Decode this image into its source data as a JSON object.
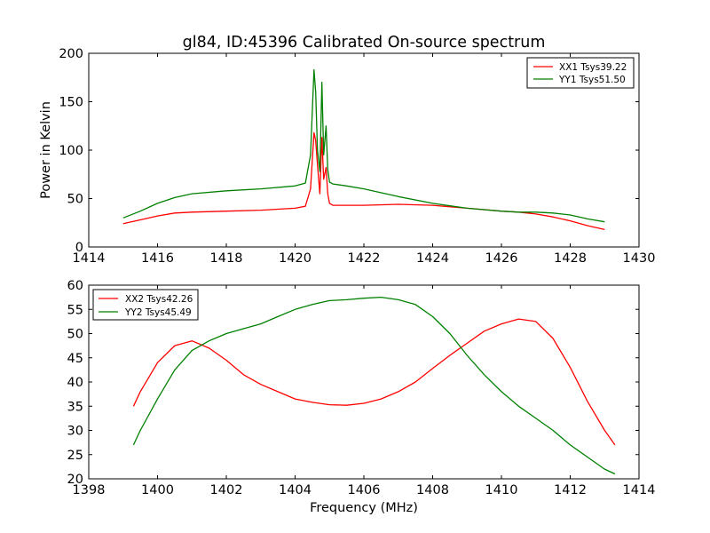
{
  "chart_data": [
    {
      "type": "line",
      "title": "gl84, ID:45396 Calibrated On-source spectrum",
      "xlabel": "",
      "ylabel": "Power in Kelvin",
      "xlim": [
        1414,
        1430
      ],
      "ylim": [
        0,
        200
      ],
      "xticks": [
        "1414",
        "1416",
        "1418",
        "1420",
        "1422",
        "1424",
        "1426",
        "1428",
        "1430"
      ],
      "yticks": [
        "0",
        "50",
        "100",
        "150",
        "200"
      ],
      "grid": false,
      "legend_position": "top-right",
      "series": [
        {
          "name": "XX1 Tsys39.22",
          "color": "#ff0000",
          "x": [
            1415.0,
            1415.5,
            1416.0,
            1416.5,
            1417.0,
            1418.0,
            1419.0,
            1420.0,
            1420.3,
            1420.45,
            1420.55,
            1420.6,
            1420.65,
            1420.72,
            1420.78,
            1420.83,
            1420.9,
            1420.95,
            1421.0,
            1421.1,
            1421.5,
            1422.0,
            1423.0,
            1424.0,
            1425.0,
            1426.0,
            1426.5,
            1427.0,
            1427.5,
            1428.0,
            1428.5,
            1429.0
          ],
          "y": [
            24,
            28,
            32,
            35,
            36,
            37,
            38,
            40,
            42,
            60,
            118,
            110,
            85,
            55,
            113,
            70,
            82,
            55,
            45,
            43,
            43,
            43,
            44,
            43,
            40,
            37,
            36,
            34,
            31,
            27,
            22,
            18
          ]
        },
        {
          "name": "YY1 Tsys51.50",
          "color": "#008000",
          "x": [
            1415.0,
            1415.5,
            1416.0,
            1416.5,
            1417.0,
            1418.0,
            1419.0,
            1420.0,
            1420.3,
            1420.45,
            1420.55,
            1420.6,
            1420.65,
            1420.72,
            1420.78,
            1420.83,
            1420.9,
            1420.95,
            1421.0,
            1421.1,
            1421.5,
            1422.0,
            1423.0,
            1424.0,
            1425.0,
            1426.0,
            1426.5,
            1427.0,
            1427.5,
            1428.0,
            1428.5,
            1429.0
          ],
          "y": [
            30,
            37,
            45,
            51,
            55,
            58,
            60,
            63,
            66,
            95,
            183,
            160,
            100,
            78,
            170,
            95,
            125,
            80,
            67,
            65,
            63,
            60,
            52,
            45,
            40,
            37,
            36,
            36,
            35,
            33,
            29,
            26
          ]
        }
      ]
    },
    {
      "type": "line",
      "title": "",
      "xlabel": "Frequency (MHz)",
      "ylabel": "",
      "xlim": [
        1398,
        1414
      ],
      "ylim": [
        20,
        60
      ],
      "xticks": [
        "1398",
        "1400",
        "1402",
        "1404",
        "1406",
        "1408",
        "1410",
        "1412",
        "1414"
      ],
      "yticks": [
        "20",
        "25",
        "30",
        "35",
        "40",
        "45",
        "50",
        "55",
        "60"
      ],
      "grid": false,
      "legend_position": "top-left",
      "series": [
        {
          "name": "XX2 Tsys42.26",
          "color": "#ff0000",
          "x": [
            1399.3,
            1399.5,
            1400.0,
            1400.5,
            1401.0,
            1401.5,
            1402.0,
            1402.5,
            1403.0,
            1403.5,
            1404.0,
            1404.5,
            1405.0,
            1405.5,
            1406.0,
            1406.5,
            1407.0,
            1407.5,
            1408.0,
            1408.5,
            1409.0,
            1409.5,
            1410.0,
            1410.5,
            1411.0,
            1411.5,
            1412.0,
            1412.5,
            1413.0,
            1413.3
          ],
          "y": [
            35,
            38,
            44,
            47.5,
            48.5,
            47,
            44.5,
            41.5,
            39.5,
            38,
            36.5,
            35.8,
            35.3,
            35.2,
            35.6,
            36.5,
            38,
            40,
            42.8,
            45.5,
            48,
            50.5,
            52,
            53,
            52.5,
            49,
            43,
            36,
            30,
            27
          ]
        },
        {
          "name": "YY2 Tsys45.49",
          "color": "#008000",
          "x": [
            1399.3,
            1399.5,
            1400.0,
            1400.5,
            1401.0,
            1401.5,
            1402.0,
            1402.5,
            1403.0,
            1403.5,
            1404.0,
            1404.5,
            1405.0,
            1405.5,
            1406.0,
            1406.5,
            1407.0,
            1407.5,
            1408.0,
            1408.5,
            1409.0,
            1409.5,
            1410.0,
            1410.5,
            1411.0,
            1411.5,
            1412.0,
            1412.5,
            1413.0,
            1413.3
          ],
          "y": [
            27,
            30,
            36.5,
            42.5,
            46.5,
            48.5,
            50,
            51,
            52,
            53.5,
            55,
            56,
            56.8,
            57,
            57.3,
            57.5,
            57,
            56,
            53.5,
            50,
            45.5,
            41.5,
            38,
            35,
            32.5,
            30,
            27,
            24.5,
            22,
            21
          ]
        }
      ]
    }
  ]
}
